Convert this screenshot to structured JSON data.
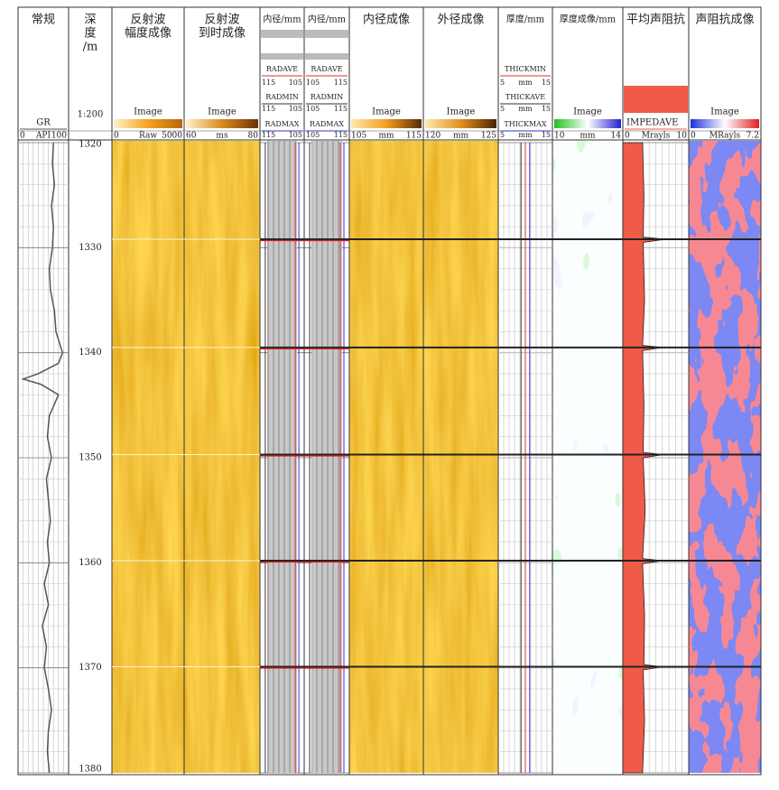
{
  "chart_data": {
    "type": "well-log",
    "ylim": [
      1320,
      1380
    ],
    "yticks": [
      1320,
      1330,
      1340,
      1350,
      1360,
      1370,
      1380
    ],
    "collars": [
      1329.2,
      1339.5,
      1349.7,
      1359.8,
      1369.9
    ],
    "tracks": [
      {
        "kind": "curve",
        "title_lines": [
          "常规"
        ],
        "unit": "API",
        "xlim": [
          0,
          100
        ],
        "depths": [
          1320,
          1322,
          1324,
          1326,
          1328,
          1330,
          1332,
          1334,
          1336,
          1338,
          1340,
          1341,
          1342,
          1342.5,
          1343,
          1344,
          1346,
          1348,
          1350,
          1352,
          1354,
          1356,
          1358,
          1360,
          1362,
          1364,
          1366,
          1368,
          1370,
          1372,
          1374,
          1376,
          1378,
          1380
        ],
        "series": [
          {
            "name": "GR",
            "color": "#555555",
            "fill": false,
            "values": [
              70,
              68,
              72,
              66,
              70,
              68,
              62,
              64,
              72,
              75,
              88,
              80,
              40,
              10,
              45,
              80,
              62,
              58,
              66,
              56,
              60,
              64,
              58,
              62,
              52,
              60,
              48,
              56,
              52,
              60,
              66,
              60,
              58,
              62
            ]
          }
        ]
      },
      {
        "kind": "depth",
        "title_lines": [
          "深",
          "度",
          "/m"
        ],
        "scale_label": "1:200"
      },
      {
        "kind": "image",
        "title_lines": [
          "反射波",
          "幅度成像"
        ],
        "image_label": "Image",
        "unit": "Raw",
        "xlim": [
          0,
          5000
        ],
        "palette": [
          "#fff2cc",
          "#f5a21f",
          "#b8650a"
        ]
      },
      {
        "kind": "image",
        "title_lines": [
          "反射波",
          "到时成像"
        ],
        "image_label": "Image",
        "unit": "ms",
        "xlim": [
          60,
          80
        ],
        "palette": [
          "#fff2cc",
          "#d98a1e",
          "#6b3306"
        ]
      },
      {
        "kind": "multi",
        "title_lines": [
          "内径/mm"
        ],
        "curves": [
          {
            "name": "RADAVE",
            "xlim": [
              115,
              105
            ]
          },
          {
            "name": "RADMIN",
            "xlim": [
              115,
              105
            ]
          },
          {
            "name": "RADMAX",
            "xlim": [
              115,
              105
            ]
          }
        ]
      },
      {
        "kind": "multi",
        "title_lines": [
          "内径/mm"
        ],
        "curves": [
          {
            "name": "RADAVE",
            "xlim": [
              105,
              115
            ]
          },
          {
            "name": "RADMIN",
            "xlim": [
              105,
              115
            ]
          },
          {
            "name": "RADMAX",
            "xlim": [
              105,
              115
            ]
          }
        ]
      },
      {
        "kind": "image",
        "title_lines": [
          "内径成像"
        ],
        "image_label": "Image",
        "unit": "mm",
        "xlim": [
          105,
          115
        ],
        "palette": [
          "#ffe9b0",
          "#f0a020",
          "#5a2a05"
        ]
      },
      {
        "kind": "image",
        "title_lines": [
          "外径成像"
        ],
        "image_label": "Image",
        "unit": "mm",
        "xlim": [
          120,
          125
        ],
        "palette": [
          "#ffe9b0",
          "#e09020",
          "#4a2204"
        ]
      },
      {
        "kind": "multi",
        "title_lines": [
          "厚度/mm"
        ],
        "curves": [
          {
            "name": "THICKMIN",
            "unit": "mm",
            "xlim": [
              5,
              15
            ]
          },
          {
            "name": "THICKAVE",
            "unit": "mm",
            "xlim": [
              5,
              15
            ]
          },
          {
            "name": "THICKMAX",
            "unit": "mm",
            "xlim": [
              5,
              15
            ]
          }
        ]
      },
      {
        "kind": "image",
        "title_lines": [
          "厚度成像/mm"
        ],
        "image_label": "Image",
        "unit": "mm",
        "xlim": [
          10,
          14
        ],
        "palette": [
          "#22c022",
          "#ffffff",
          "#2222d0"
        ]
      },
      {
        "kind": "curve",
        "title_lines": [
          "平均声阻抗"
        ],
        "unit": "Mrayls",
        "xlim": [
          0,
          10
        ],
        "depths": [
          1320,
          1325,
          1329,
          1329.2,
          1329.5,
          1335,
          1339.3,
          1339.5,
          1339.8,
          1345,
          1349.5,
          1349.7,
          1350,
          1355,
          1359.6,
          1359.8,
          1360.1,
          1365,
          1369.7,
          1369.9,
          1370.2,
          1375,
          1380
        ],
        "series": [
          {
            "name": "IMPEDAVE",
            "color": "#f05a48",
            "fill": true,
            "values": [
              3,
              3.2,
              3.1,
              6.5,
              3.1,
              3.3,
              3,
              6,
              3,
              3.2,
              3.1,
              6.2,
              3.1,
              3.4,
              3,
              6,
              3,
              3.3,
              3.2,
              6,
              3.1,
              3.3,
              3
            ]
          }
        ]
      },
      {
        "kind": "image",
        "title_lines": [
          "声阻抗成像"
        ],
        "image_label": "Image",
        "unit": "MRayls",
        "xlim": [
          0,
          7.2
        ],
        "palette": [
          "#2030e0",
          "#ffffff",
          "#e02020"
        ]
      }
    ]
  }
}
